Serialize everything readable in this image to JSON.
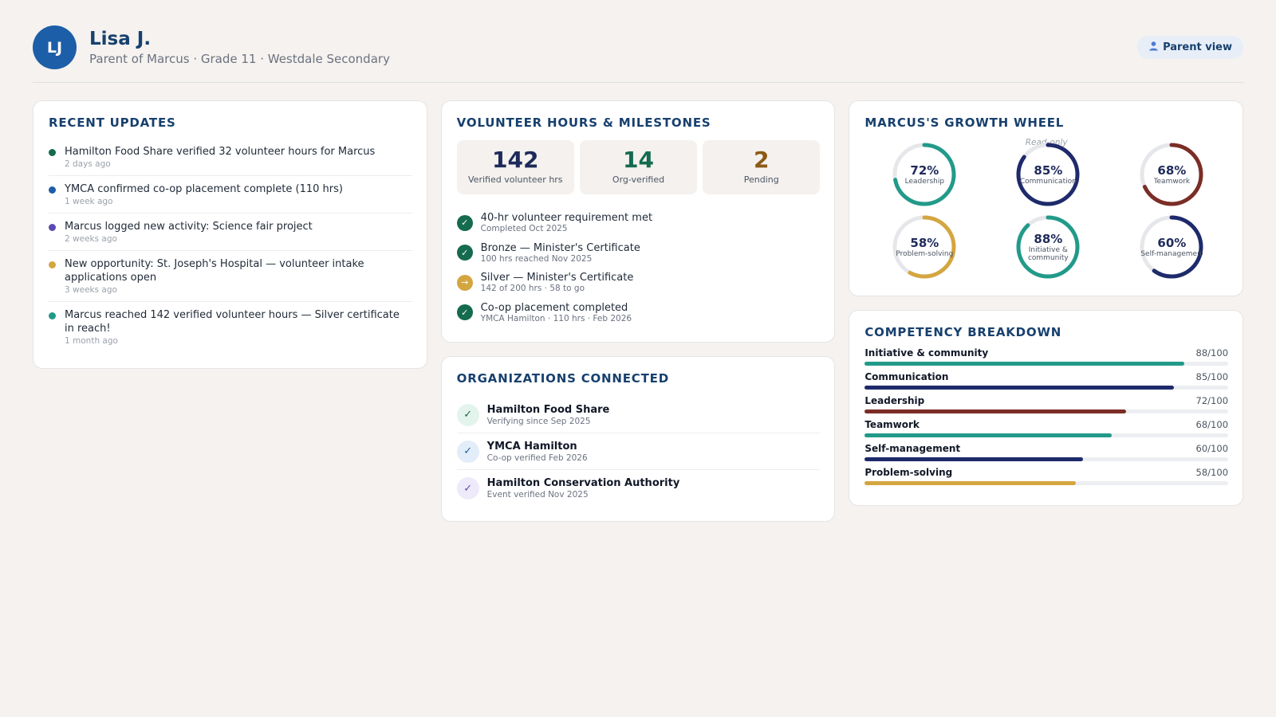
{
  "header": {
    "initials": "LJ",
    "name": "Lisa J.",
    "subtitle": "Parent of Marcus · Grade 11 · Westdale Secondary",
    "view_icon": "person-icon",
    "view_label": "Parent view"
  },
  "recent_updates": {
    "title": "RECENT UPDATES",
    "items": [
      {
        "text": "Hamilton Food Share verified 32 volunteer hours for Marcus",
        "when": "2 days ago",
        "color": "#156b4f"
      },
      {
        "text": "YMCA confirmed co-op placement complete (110 hrs)",
        "when": "1 week ago",
        "color": "#1d5ea8"
      },
      {
        "text": "Marcus logged new activity: Science fair project",
        "when": "2 weeks ago",
        "color": "#5b4bb0"
      },
      {
        "text": "New opportunity: St. Joseph's Hospital — volunteer intake applications open",
        "when": "3 weeks ago",
        "color": "#d4a640"
      },
      {
        "text": "Marcus reached 142 verified volunteer hours — Silver certificate in reach!",
        "when": "1 month ago",
        "color": "#229a8a"
      }
    ]
  },
  "volunteer": {
    "title": "VOLUNTEER HOURS & MILESTONES",
    "stats": [
      {
        "value": "142",
        "label": "Verified volunteer hrs",
        "color": "#1e2a5a"
      },
      {
        "value": "14",
        "label": "Org-verified",
        "color": "#156b4f"
      },
      {
        "value": "2",
        "label": "Pending",
        "color": "#8a5a16"
      }
    ],
    "milestones": [
      {
        "title": "40-hr volunteer requirement met",
        "sub": "Completed Oct 2025",
        "status": "done",
        "glyph": "✓",
        "color": "#156b4f"
      },
      {
        "title": "Bronze — Minister's Certificate",
        "sub": "100 hrs reached Nov 2025",
        "status": "done",
        "glyph": "✓",
        "color": "#156b4f"
      },
      {
        "title": "Silver — Minister's Certificate",
        "sub": "142 of 200 hrs · 58 to go",
        "status": "in-progress",
        "glyph": "→",
        "color": "#d4a640"
      },
      {
        "title": "Co-op placement completed",
        "sub": "YMCA Hamilton · 110 hrs · Feb 2026",
        "status": "done",
        "glyph": "✓",
        "color": "#156b4f"
      }
    ]
  },
  "organizations": {
    "title": "ORGANIZATIONS CONNECTED",
    "items": [
      {
        "name": "Hamilton Food Share",
        "sub": "Verifying since Sep 2025",
        "icon": "check-icon",
        "glyph": "✓",
        "bg": "#e3f4ec",
        "fg": "#156b4f"
      },
      {
        "name": "YMCA Hamilton",
        "sub": "Co-op verified Feb 2026",
        "icon": "check-icon",
        "glyph": "✓",
        "bg": "#e3edf9",
        "fg": "#1d5ea8"
      },
      {
        "name": "Hamilton Conservation Authority",
        "sub": "Event verified Nov 2025",
        "icon": "check-icon",
        "glyph": "✓",
        "bg": "#eeeafa",
        "fg": "#5b4bb0"
      }
    ]
  },
  "growth_wheel": {
    "title": "MARCUS'S GROWTH WHEEL",
    "readonly_label": "Read-only",
    "rings": [
      {
        "label": "Leadership",
        "pct": 72,
        "pct_text": "72%",
        "color": "#229a8a"
      },
      {
        "label": "Communication",
        "pct": 85,
        "pct_text": "85%",
        "color": "#1e2a6b"
      },
      {
        "label": "Teamwork",
        "pct": 68,
        "pct_text": "68%",
        "color": "#7a2e26"
      },
      {
        "label": "Problem-solving",
        "pct": 58,
        "pct_text": "58%",
        "color": "#d4a640"
      },
      {
        "label": "Initiative & community",
        "pct": 88,
        "pct_text": "88%",
        "color": "#229a8a"
      },
      {
        "label": "Self-management",
        "pct": 60,
        "pct_text": "60%",
        "color": "#1e2a6b"
      }
    ]
  },
  "competency": {
    "title": "COMPETENCY BREAKDOWN",
    "rows": [
      {
        "name": "Initiative & community",
        "value": 88,
        "value_text": "88/100",
        "color": "#229a8a"
      },
      {
        "name": "Communication",
        "value": 85,
        "value_text": "85/100",
        "color": "#1e2a6b"
      },
      {
        "name": "Leadership",
        "value": 72,
        "value_text": "72/100",
        "color": "#7a2e26"
      },
      {
        "name": "Teamwork",
        "value": 68,
        "value_text": "68/100",
        "color": "#229a8a"
      },
      {
        "name": "Self-management",
        "value": 60,
        "value_text": "60/100",
        "color": "#1e2a6b"
      },
      {
        "name": "Problem-solving",
        "value": 58,
        "value_text": "58/100",
        "color": "#d4a640"
      }
    ]
  }
}
